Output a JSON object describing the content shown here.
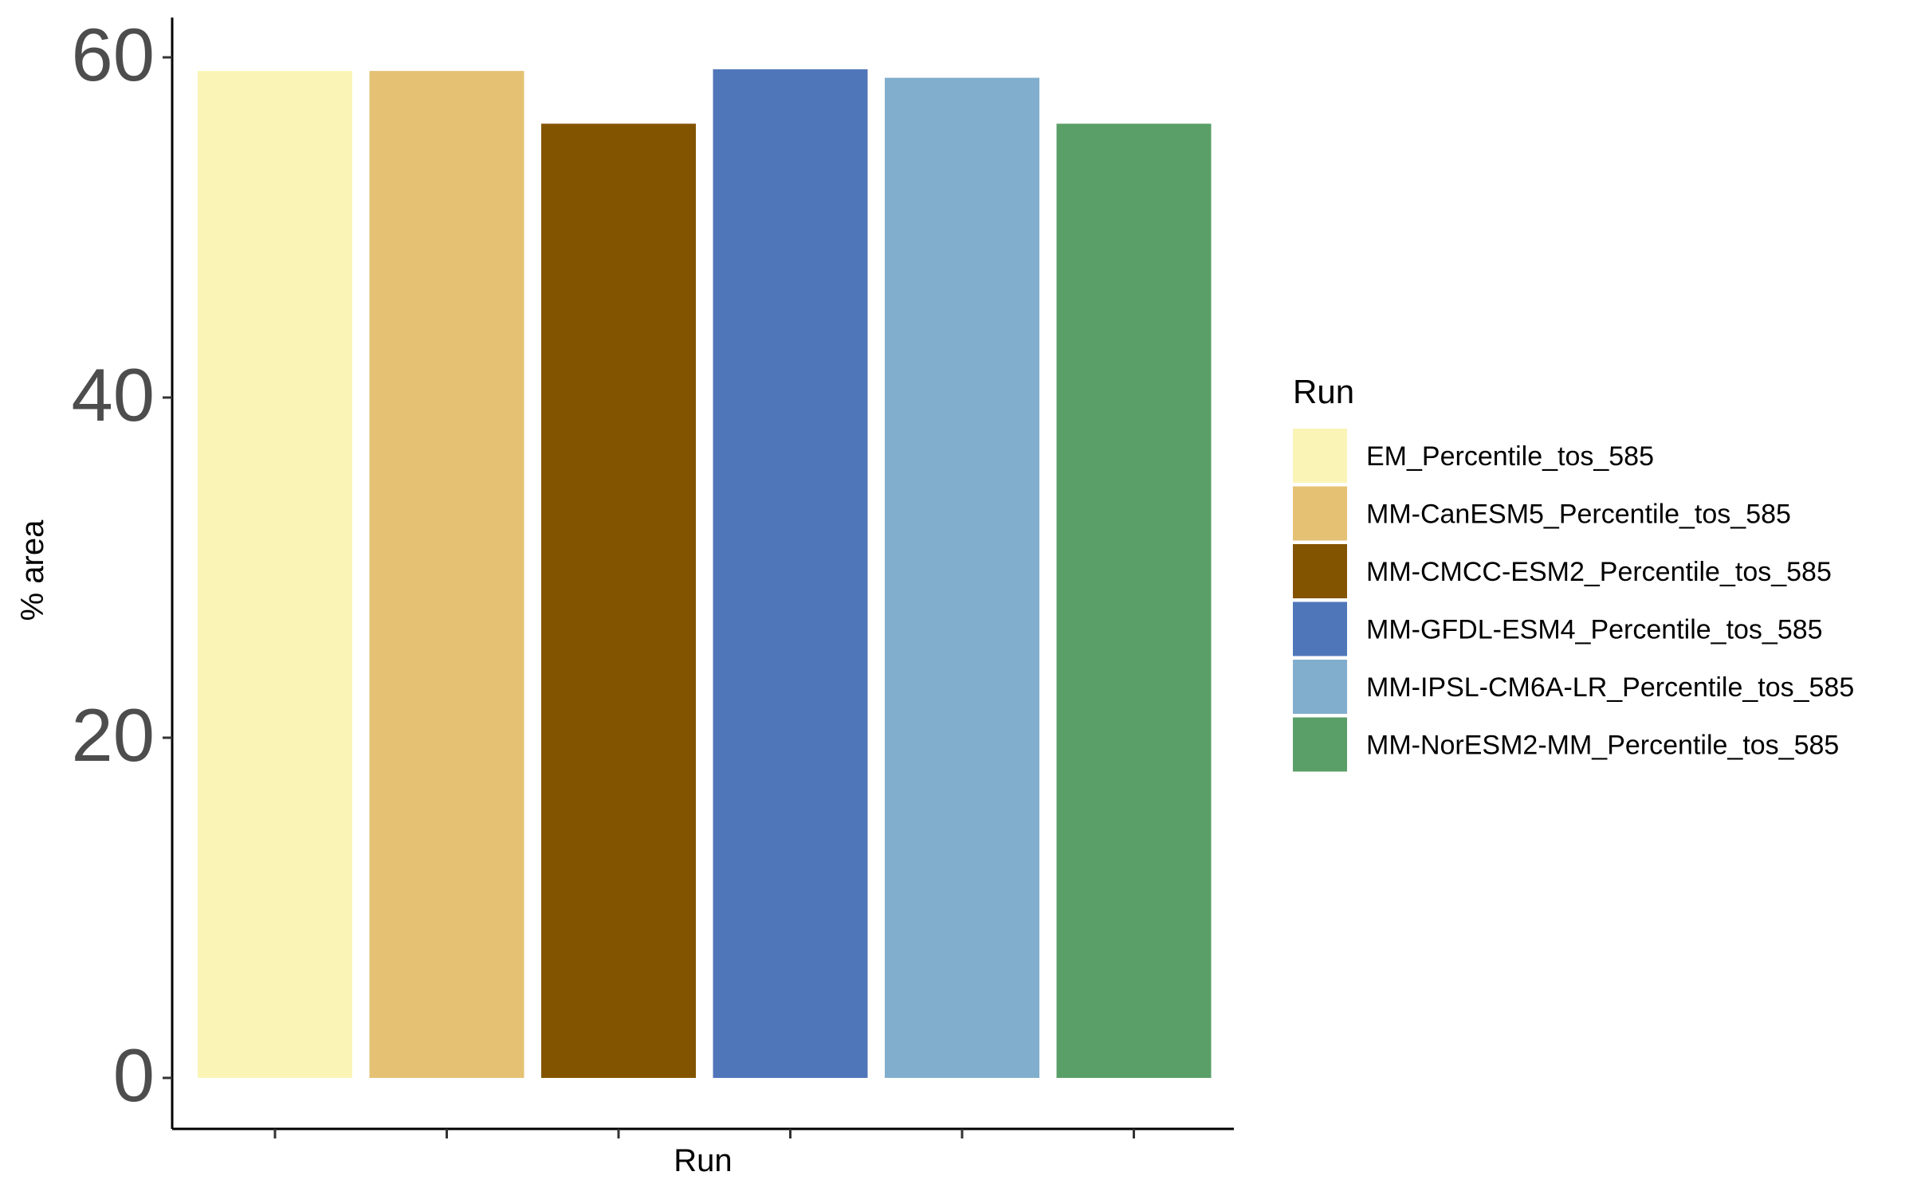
{
  "chart_data": {
    "type": "bar",
    "categories": [
      "EM_Percentile_tos_585",
      "MM-CanESM5_Percentile_tos_585",
      "MM-CMCC-ESM2_Percentile_tos_585",
      "MM-GFDL-ESM4_Percentile_tos_585",
      "MM-IPSL-CM6A-LR_Percentile_tos_585",
      "MM-NorESM2-MM_Percentile_tos_585"
    ],
    "values": [
      59.2,
      59.2,
      56.1,
      59.3,
      58.8,
      56.1
    ],
    "colors": [
      "#FAF5B7",
      "#E5C174",
      "#835400",
      "#5076BA",
      "#82AECD",
      "#5A9F68"
    ],
    "title": "",
    "xlabel": "Run",
    "ylabel": "% area",
    "ylim": [
      0,
      62.5
    ],
    "yticks": [
      0,
      20,
      40,
      60
    ],
    "x_tick_labels_shown": false,
    "grid": false,
    "legend": {
      "title": "Run",
      "placement": "right"
    }
  }
}
